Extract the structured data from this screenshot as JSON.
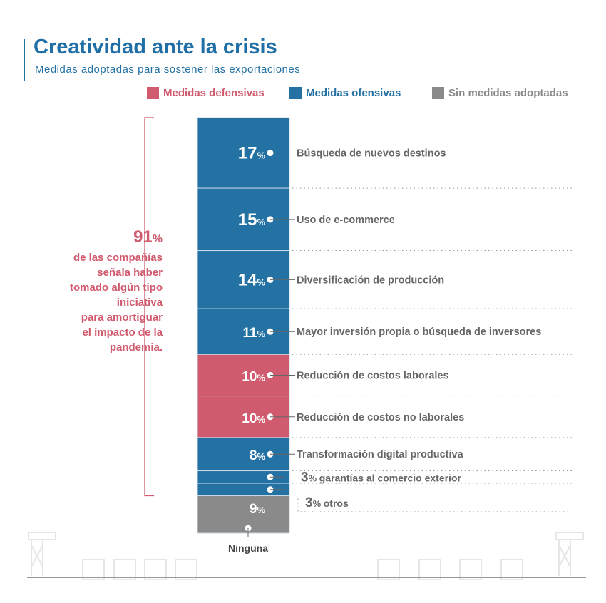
{
  "title": "Creatividad ante la crisis",
  "subtitle": "Medidas adoptadas para sostener las exportaciones",
  "legend": [
    {
      "label": "Medidas defensivas",
      "color": "#d05a6e"
    },
    {
      "label": "Medidas ofensivas",
      "color": "#2471a3"
    },
    {
      "label": "Sin medidas adoptadas",
      "color": "#8a8a8a"
    }
  ],
  "note": {
    "value": "91",
    "unit": "%",
    "text": [
      "de las compañías",
      "señala haber",
      "tomado algún tipo",
      "iniciativa",
      "para amortiguar",
      "el impacto de la",
      "pandemia."
    ]
  },
  "chart_data": {
    "type": "stacked-bar",
    "unit": "%",
    "segments": [
      {
        "label": "Búsqueda de nuevos destinos",
        "value": 17,
        "category": "Medidas ofensivas",
        "color": "#2471a3"
      },
      {
        "label": "Uso de e-commerce",
        "value": 15,
        "category": "Medidas ofensivas",
        "color": "#2471a3"
      },
      {
        "label": "Diversificación de producción",
        "value": 14,
        "category": "Medidas ofensivas",
        "color": "#2471a3"
      },
      {
        "label": "Mayor inversión propia o búsqueda de inversores",
        "value": 11,
        "category": "Medidas ofensivas",
        "color": "#2471a3"
      },
      {
        "label": "Reducción de costos laborales",
        "value": 10,
        "category": "Medidas defensivas",
        "color": "#d05a6e"
      },
      {
        "label": "Reducción de costos no laborales",
        "value": 10,
        "category": "Medidas defensivas",
        "color": "#d05a6e"
      },
      {
        "label": "Transformación digital productiva",
        "value": 8,
        "category": "Medidas ofensivas",
        "color": "#2471a3"
      },
      {
        "label": "garantías al comercio exterior",
        "value": 3,
        "category": "Medidas ofensivas",
        "color": "#2471a3"
      },
      {
        "label": "otros",
        "value": 3,
        "category": "Medidas ofensivas",
        "color": "#2471a3"
      },
      {
        "label": "Ninguna",
        "value": 9,
        "category": "Sin medidas adoptadas",
        "color": "#8a8a8a"
      }
    ]
  }
}
